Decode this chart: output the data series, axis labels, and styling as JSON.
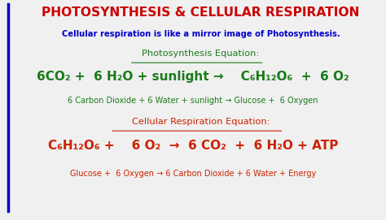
{
  "title": "PHOTOSYNTHESIS & CELLULAR RESPIRATION",
  "subtitle": "Cellular respiration is like a mirror image of Photosynthesis.",
  "title_color": "#cc0000",
  "subtitle_color": "#0000cc",
  "green_color": "#1a7a1a",
  "red_color": "#cc2200",
  "bg_color": "#f0f0f0",
  "photo_label": "Photosynthesis Equation:",
  "cell_label": "Cellular Respiration Equation:",
  "photo_eq_main": "6CO₂ +  6 H₂O + sunlight →    C₆H₁₂O₆  +  6 O₂",
  "photo_eq_words": "6 Carbon Dioxide + 6 Water + sunlight → Glucose +  6 Oxygen",
  "cell_eq_main": "C₆H₁₂O₆ +    6 O₂  →  6 CO₂  +  6 H₂O + ATP",
  "cell_eq_words": "Glucose +  6 Oxygen → 6 Carbon Dioxide + 6 Water + Energy",
  "blue_line_color": "#0000cc"
}
